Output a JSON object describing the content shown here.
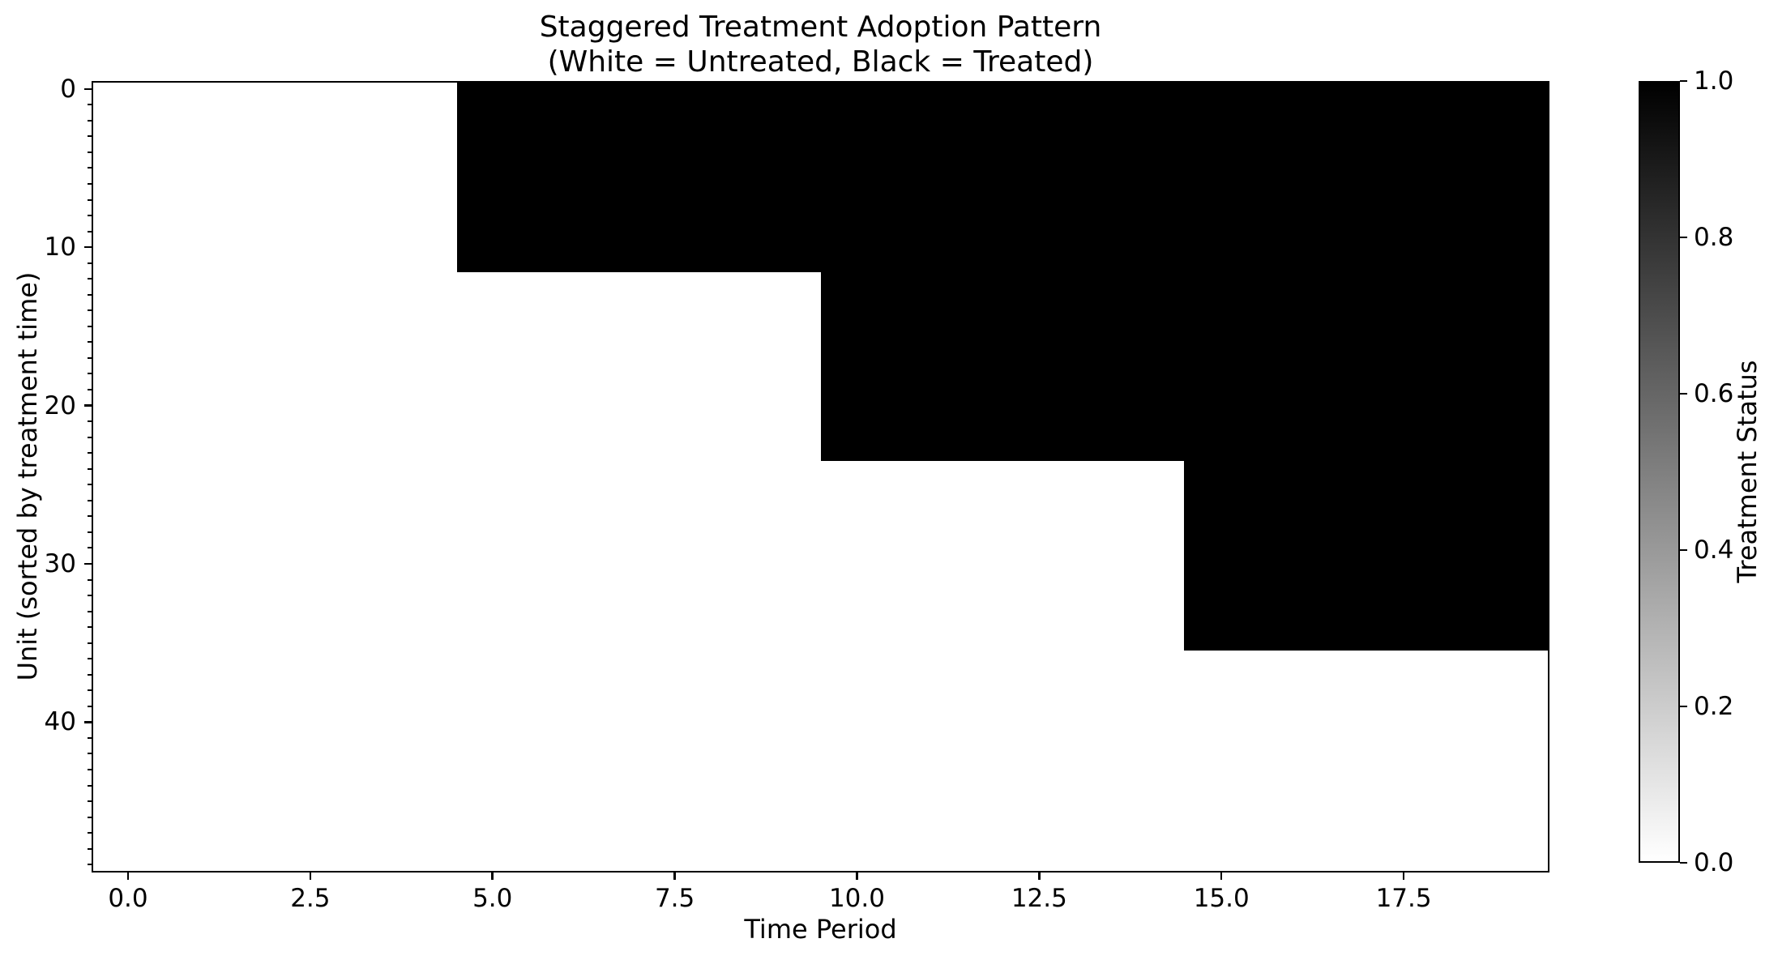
{
  "chart_data": {
    "type": "heatmap",
    "title": "Staggered Treatment Adoption Pattern",
    "subtitle": "(White = Untreated, Black = Treated)",
    "xlabel": "Time Period",
    "ylabel": "Unit (sorted by treatment time)",
    "colorbar_label": "Treatment Status",
    "n_units": 50,
    "n_periods": 20,
    "x_range": [
      -0.5,
      19.5
    ],
    "y_range": [
      -0.5,
      49.5
    ],
    "value_encoding": {
      "untreated": 0,
      "treated": 1
    },
    "colors": {
      "untreated": "#ffffff",
      "treated": "#000000"
    },
    "adoption_groups": [
      {
        "unit_start": 0,
        "unit_end": 11,
        "n_units": 12,
        "first_treated_period": 5
      },
      {
        "unit_start": 12,
        "unit_end": 23,
        "n_units": 12,
        "first_treated_period": 10
      },
      {
        "unit_start": 24,
        "unit_end": 35,
        "n_units": 12,
        "first_treated_period": 15
      },
      {
        "unit_start": 36,
        "unit_end": 49,
        "n_units": 14,
        "first_treated_period": null
      }
    ],
    "x_ticks": [
      {
        "value": 0.0,
        "label": "0.0"
      },
      {
        "value": 2.5,
        "label": "2.5"
      },
      {
        "value": 5.0,
        "label": "5.0"
      },
      {
        "value": 7.5,
        "label": "7.5"
      },
      {
        "value": 10.0,
        "label": "10.0"
      },
      {
        "value": 12.5,
        "label": "12.5"
      },
      {
        "value": 15.0,
        "label": "15.0"
      },
      {
        "value": 17.5,
        "label": "17.5"
      }
    ],
    "y_ticks": [
      {
        "value": 0,
        "label": "0"
      },
      {
        "value": 10,
        "label": "10"
      },
      {
        "value": 20,
        "label": "20"
      },
      {
        "value": 30,
        "label": "30"
      },
      {
        "value": 40,
        "label": "40"
      }
    ],
    "y_minor_tick_step": 1,
    "colorbar_ticks": [
      {
        "value": 1.0,
        "label": "1.0"
      },
      {
        "value": 0.8,
        "label": "0.8"
      },
      {
        "value": 0.6,
        "label": "0.6"
      },
      {
        "value": 0.4,
        "label": "0.4"
      },
      {
        "value": 0.2,
        "label": "0.2"
      },
      {
        "value": 0.0,
        "label": "0.0"
      }
    ],
    "legend_position": "right-colorbar",
    "grid": false
  }
}
